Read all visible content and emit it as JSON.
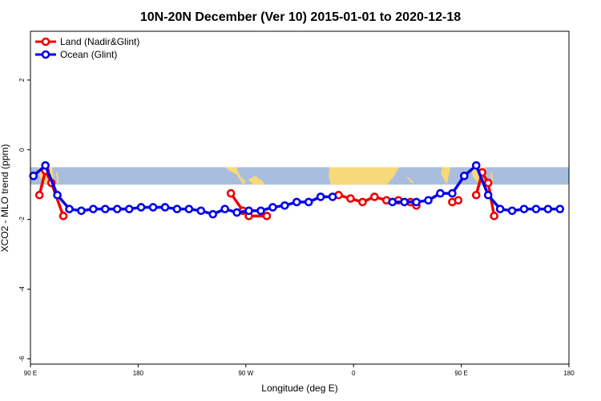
{
  "chart_data": {
    "type": "line",
    "title": "10N-20N December (Ver 10)   2015-01-01 to 2020-12-18",
    "xlabel": "Longitude (deg E)",
    "ylabel": "XCO2 - MLO trend (ppm)",
    "xlim": [
      90,
      540
    ],
    "ylim": [
      -6.15,
      3.4
    ],
    "x_ticks": [
      {
        "value": 90,
        "label": "90 E"
      },
      {
        "value": 180,
        "label": "180"
      },
      {
        "value": 270,
        "label": "90 W"
      },
      {
        "value": 360,
        "label": "0"
      },
      {
        "value": 450,
        "label": "90 E"
      },
      {
        "value": 540,
        "label": "180"
      }
    ],
    "y_ticks": [
      {
        "value": -6,
        "label": "-6"
      },
      {
        "value": -4,
        "label": "-4"
      },
      {
        "value": -2,
        "label": "-2"
      },
      {
        "value": 0,
        "label": "0"
      },
      {
        "value": 2,
        "label": "2"
      }
    ],
    "map_band": {
      "y_top": -0.5,
      "y_bottom": -1.0,
      "ocean_color": "#a9bedf",
      "land_color": "#f7d87a"
    },
    "legend": {
      "position": "top-left"
    },
    "series": [
      {
        "name": "Land (Nadir&Glint)",
        "color": "#ee0000",
        "segments": [
          [
            [
              97.5,
              -1.3
            ],
            [
              102.5,
              -0.6
            ],
            [
              107.5,
              -0.95
            ],
            [
              117.5,
              -1.9
            ]
          ],
          [
            [
              257.5,
              -1.25
            ],
            [
              267.5,
              -1.75
            ],
            [
              272.5,
              -1.9
            ],
            [
              287.5,
              -1.9
            ]
          ],
          [
            [
              347.5,
              -1.3
            ],
            [
              357.5,
              -1.4
            ],
            [
              367.5,
              -1.5
            ],
            [
              377.5,
              -1.35
            ],
            [
              387.5,
              -1.45
            ],
            [
              397.5,
              -1.45
            ],
            [
              407.5,
              -1.5
            ],
            [
              412.5,
              -1.6
            ]
          ],
          [
            [
              442.5,
              -1.5
            ],
            [
              447.5,
              -1.45
            ]
          ],
          [
            [
              462.5,
              -1.3
            ],
            [
              467.5,
              -0.65
            ],
            [
              472.5,
              -0.95
            ],
            [
              477.5,
              -1.9
            ]
          ]
        ]
      },
      {
        "name": "Ocean (Glint)",
        "color": "#0000ee",
        "segments": [
          [
            [
              92.5,
              -0.75
            ],
            [
              102.5,
              -0.45
            ],
            [
              112.5,
              -1.3
            ],
            [
              122.5,
              -1.7
            ],
            [
              132.5,
              -1.75
            ],
            [
              142.5,
              -1.7
            ],
            [
              152.5,
              -1.7
            ],
            [
              162.5,
              -1.7
            ],
            [
              172.5,
              -1.7
            ],
            [
              182.5,
              -1.65
            ],
            [
              192.5,
              -1.65
            ],
            [
              202.5,
              -1.65
            ],
            [
              212.5,
              -1.7
            ],
            [
              222.5,
              -1.7
            ],
            [
              232.5,
              -1.75
            ],
            [
              242.5,
              -1.85
            ],
            [
              252.5,
              -1.7
            ],
            [
              262.5,
              -1.8
            ],
            [
              272.5,
              -1.75
            ],
            [
              282.5,
              -1.75
            ],
            [
              292.5,
              -1.65
            ],
            [
              302.5,
              -1.6
            ],
            [
              312.5,
              -1.5
            ],
            [
              322.5,
              -1.5
            ],
            [
              332.5,
              -1.35
            ],
            [
              342.5,
              -1.35
            ]
          ],
          [
            [
              392.5,
              -1.5
            ],
            [
              402.5,
              -1.5
            ],
            [
              412.5,
              -1.5
            ],
            [
              422.5,
              -1.45
            ],
            [
              432.5,
              -1.25
            ],
            [
              442.5,
              -1.25
            ],
            [
              452.5,
              -0.75
            ],
            [
              462.5,
              -0.45
            ],
            [
              472.5,
              -1.3
            ],
            [
              482.5,
              -1.7
            ],
            [
              492.5,
              -1.75
            ],
            [
              502.5,
              -1.7
            ],
            [
              512.5,
              -1.7
            ],
            [
              522.5,
              -1.7
            ],
            [
              532.5,
              -1.7
            ]
          ]
        ]
      }
    ]
  }
}
